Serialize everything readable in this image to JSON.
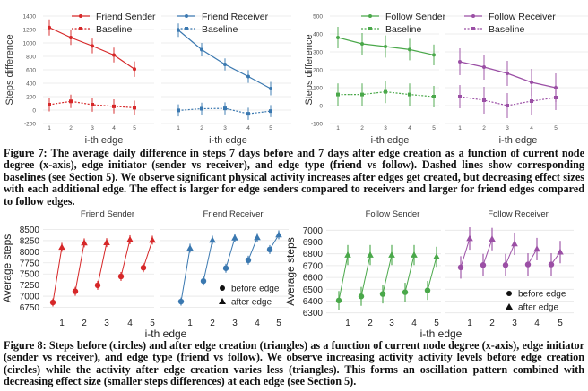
{
  "figure7": {
    "caption": "Figure 7: The average daily difference in steps 7 days before and 7 days after edge creation as a function of current node degree (x-axis), edge initiator (sender vs receiver), and edge type (friend vs follow). Dashed lines show corresponding baselines (see Section 5). We observe significant physical activity increases after edges get created, but decreasing effect sizes with each additional edge. The effect is larger for edge senders compared to receivers and larger for friend edges compared to follow edges."
  },
  "figure8": {
    "caption": "Figure 8: Steps before (circles) and after edge creation (triangles) as a function of current node degree (x-axis), edge initiator (sender vs receiver), and edge type (friend vs follow). We observe increasing activity activity levels before edge creation (circles) while the activity after edge creation varies less (triangles). This forms an oscillation pattern combined with decreasing effect size (smaller steps differences) at each edge (see Section 5).",
    "legend": {
      "before": "before edge",
      "after": "after edge"
    }
  },
  "chart_data": [
    {
      "type": "line",
      "figure": "Figure 7",
      "panel": "Friend Sender",
      "color": "#d62728",
      "xlabel": "i-th edge",
      "ylabel": "Steps difference",
      "x": [
        1,
        2,
        3,
        4,
        5
      ],
      "xticks": [
        "1",
        "2",
        "3",
        "4",
        "5"
      ],
      "ylim": [
        -200,
        1400
      ],
      "yticks": [
        -200,
        0,
        200,
        400,
        600,
        800,
        1000,
        1200,
        1400
      ],
      "grid": true,
      "legend_position": "top-right",
      "series": [
        {
          "name": "Friend Sender",
          "style": "solid",
          "marker": "circle",
          "values": [
            1230,
            1080,
            955,
            820,
            610
          ],
          "err": [
            120,
            110,
            110,
            110,
            115
          ]
        },
        {
          "name": "Baseline",
          "style": "dashed",
          "marker": "square",
          "values": [
            80,
            130,
            80,
            55,
            35
          ],
          "err": [
            100,
            100,
            105,
            105,
            105
          ]
        }
      ]
    },
    {
      "type": "line",
      "figure": "Figure 7",
      "panel": "Friend Receiver",
      "color": "#3a78b0",
      "xlabel": "i-th edge",
      "ylabel": "",
      "x": [
        1,
        2,
        3,
        4,
        5
      ],
      "xticks": [
        "1",
        "2",
        "3",
        "4",
        "5"
      ],
      "ylim": [
        -200,
        1400
      ],
      "grid": true,
      "legend_position": "top-right",
      "series": [
        {
          "name": "Friend Receiver",
          "style": "solid",
          "marker": "circle",
          "values": [
            1190,
            900,
            680,
            500,
            320
          ],
          "err": [
            100,
            100,
            90,
            95,
            100
          ]
        },
        {
          "name": "Baseline",
          "style": "dashed",
          "marker": "square",
          "values": [
            -5,
            20,
            25,
            -55,
            -15
          ],
          "err": [
            90,
            90,
            90,
            90,
            90
          ]
        }
      ]
    },
    {
      "type": "line",
      "figure": "Figure 7",
      "panel": "Follow Sender",
      "color": "#4aa84a",
      "xlabel": "i-th edge",
      "ylabel": "Steps difference",
      "x": [
        1,
        2,
        3,
        4,
        5
      ],
      "xticks": [
        "1",
        "2",
        "3",
        "4",
        "5"
      ],
      "ylim": [
        -100,
        500
      ],
      "yticks": [
        -100,
        0,
        100,
        200,
        300,
        400,
        500
      ],
      "grid": true,
      "legend_position": "top-right",
      "series": [
        {
          "name": "Follow Sender",
          "style": "solid",
          "marker": "circle",
          "values": [
            380,
            345,
            330,
            313,
            283
          ],
          "err": [
            60,
            60,
            62,
            60,
            58
          ]
        },
        {
          "name": "Baseline",
          "style": "dashed",
          "marker": "square",
          "values": [
            62,
            62,
            77,
            62,
            50
          ],
          "err": [
            62,
            62,
            63,
            62,
            60
          ]
        }
      ]
    },
    {
      "type": "line",
      "figure": "Figure 7",
      "panel": "Follow Receiver",
      "color": "#9b4fa5",
      "xlabel": "i-th edge",
      "ylabel": "",
      "x": [
        1,
        2,
        3,
        4,
        5
      ],
      "xticks": [
        "1",
        "2",
        "3",
        "4",
        "5"
      ],
      "ylim": [
        -100,
        500
      ],
      "grid": true,
      "legend_position": "top-right",
      "series": [
        {
          "name": "Follow Receiver",
          "style": "solid",
          "marker": "circle",
          "values": [
            245,
            215,
            180,
            130,
            100
          ],
          "err": [
            75,
            70,
            70,
            75,
            80
          ]
        },
        {
          "name": "Baseline",
          "style": "dashed",
          "marker": "square",
          "values": [
            50,
            30,
            0,
            25,
            45
          ],
          "err": [
            65,
            75,
            70,
            75,
            70
          ]
        }
      ]
    },
    {
      "type": "scatter",
      "figure": "Figure 8",
      "panel": "Friend Sender",
      "title": "Friend Sender",
      "color": "#d62728",
      "xlabel": "i-th edge",
      "ylabel": "Average steps",
      "x": [
        1,
        2,
        3,
        4,
        5
      ],
      "xticks": [
        "1",
        "2",
        "3",
        "4",
        "5"
      ],
      "ylim": [
        6700,
        8550
      ],
      "yticks": [
        6750,
        7000,
        7250,
        7500,
        7750,
        8000,
        8250,
        8500
      ],
      "grid": true,
      "series": [
        {
          "name": "before edge",
          "marker": "circle",
          "values": [
            6860,
            7110,
            7245,
            7445,
            7640
          ],
          "err": [
            90,
            100,
            100,
            100,
            100
          ]
        },
        {
          "name": "after edge",
          "marker": "triangle",
          "values": [
            8100,
            8200,
            8205,
            8270,
            8260
          ],
          "err": [
            100,
            100,
            100,
            100,
            100
          ]
        }
      ]
    },
    {
      "type": "scatter",
      "figure": "Figure 8",
      "panel": "Friend Receiver",
      "title": "Friend Receiver",
      "color": "#3a78b0",
      "xlabel": "i-th edge",
      "ylabel": "",
      "x": [
        1,
        2,
        3,
        4,
        5
      ],
      "xticks": [
        "1",
        "2",
        "3",
        "4",
        "5"
      ],
      "ylim": [
        6700,
        8550
      ],
      "grid": true,
      "legend_position": "bottom-right",
      "series": [
        {
          "name": "before edge",
          "marker": "circle",
          "values": [
            6880,
            7340,
            7630,
            7810,
            8050
          ],
          "err": [
            90,
            100,
            100,
            100,
            100
          ]
        },
        {
          "name": "after edge",
          "marker": "triangle",
          "values": [
            8080,
            8260,
            8310,
            8320,
            8380
          ],
          "err": [
            100,
            100,
            100,
            100,
            100
          ]
        }
      ]
    },
    {
      "type": "scatter",
      "figure": "Figure 8",
      "panel": "Follow Sender",
      "title": "Follow Sender",
      "color": "#4aa84a",
      "xlabel": "i-th edge",
      "ylabel": "Average steps",
      "x": [
        1,
        2,
        3,
        4,
        5
      ],
      "xticks": [
        "1",
        "2",
        "3",
        "4",
        "5"
      ],
      "ylim": [
        6290,
        7010
      ],
      "yticks": [
        6300,
        6400,
        6500,
        6600,
        6700,
        6800,
        6900,
        7000
      ],
      "grid": true,
      "series": [
        {
          "name": "before edge",
          "marker": "circle",
          "values": [
            6405,
            6440,
            6460,
            6475,
            6490
          ],
          "err": [
            80,
            80,
            80,
            80,
            80
          ]
        },
        {
          "name": "after edge",
          "marker": "triangle",
          "values": [
            6790,
            6790,
            6790,
            6790,
            6775
          ],
          "err": [
            85,
            85,
            85,
            85,
            85
          ]
        }
      ]
    },
    {
      "type": "scatter",
      "figure": "Figure 8",
      "panel": "Follow Receiver",
      "title": "Follow Receiver",
      "color": "#9b4fa5",
      "xlabel": "i-th edge",
      "ylabel": "",
      "x": [
        1,
        2,
        3,
        4,
        5
      ],
      "xticks": [
        "1",
        "2",
        "3",
        "4",
        "5"
      ],
      "ylim": [
        6290,
        7010
      ],
      "grid": true,
      "legend_position": "bottom-right",
      "series": [
        {
          "name": "before edge",
          "marker": "circle",
          "values": [
            6685,
            6705,
            6705,
            6710,
            6710
          ],
          "err": [
            95,
            95,
            95,
            95,
            95
          ]
        },
        {
          "name": "after edge",
          "marker": "triangle",
          "values": [
            6930,
            6925,
            6885,
            6840,
            6815
          ],
          "err": [
            95,
            95,
            95,
            95,
            95
          ]
        }
      ]
    }
  ]
}
